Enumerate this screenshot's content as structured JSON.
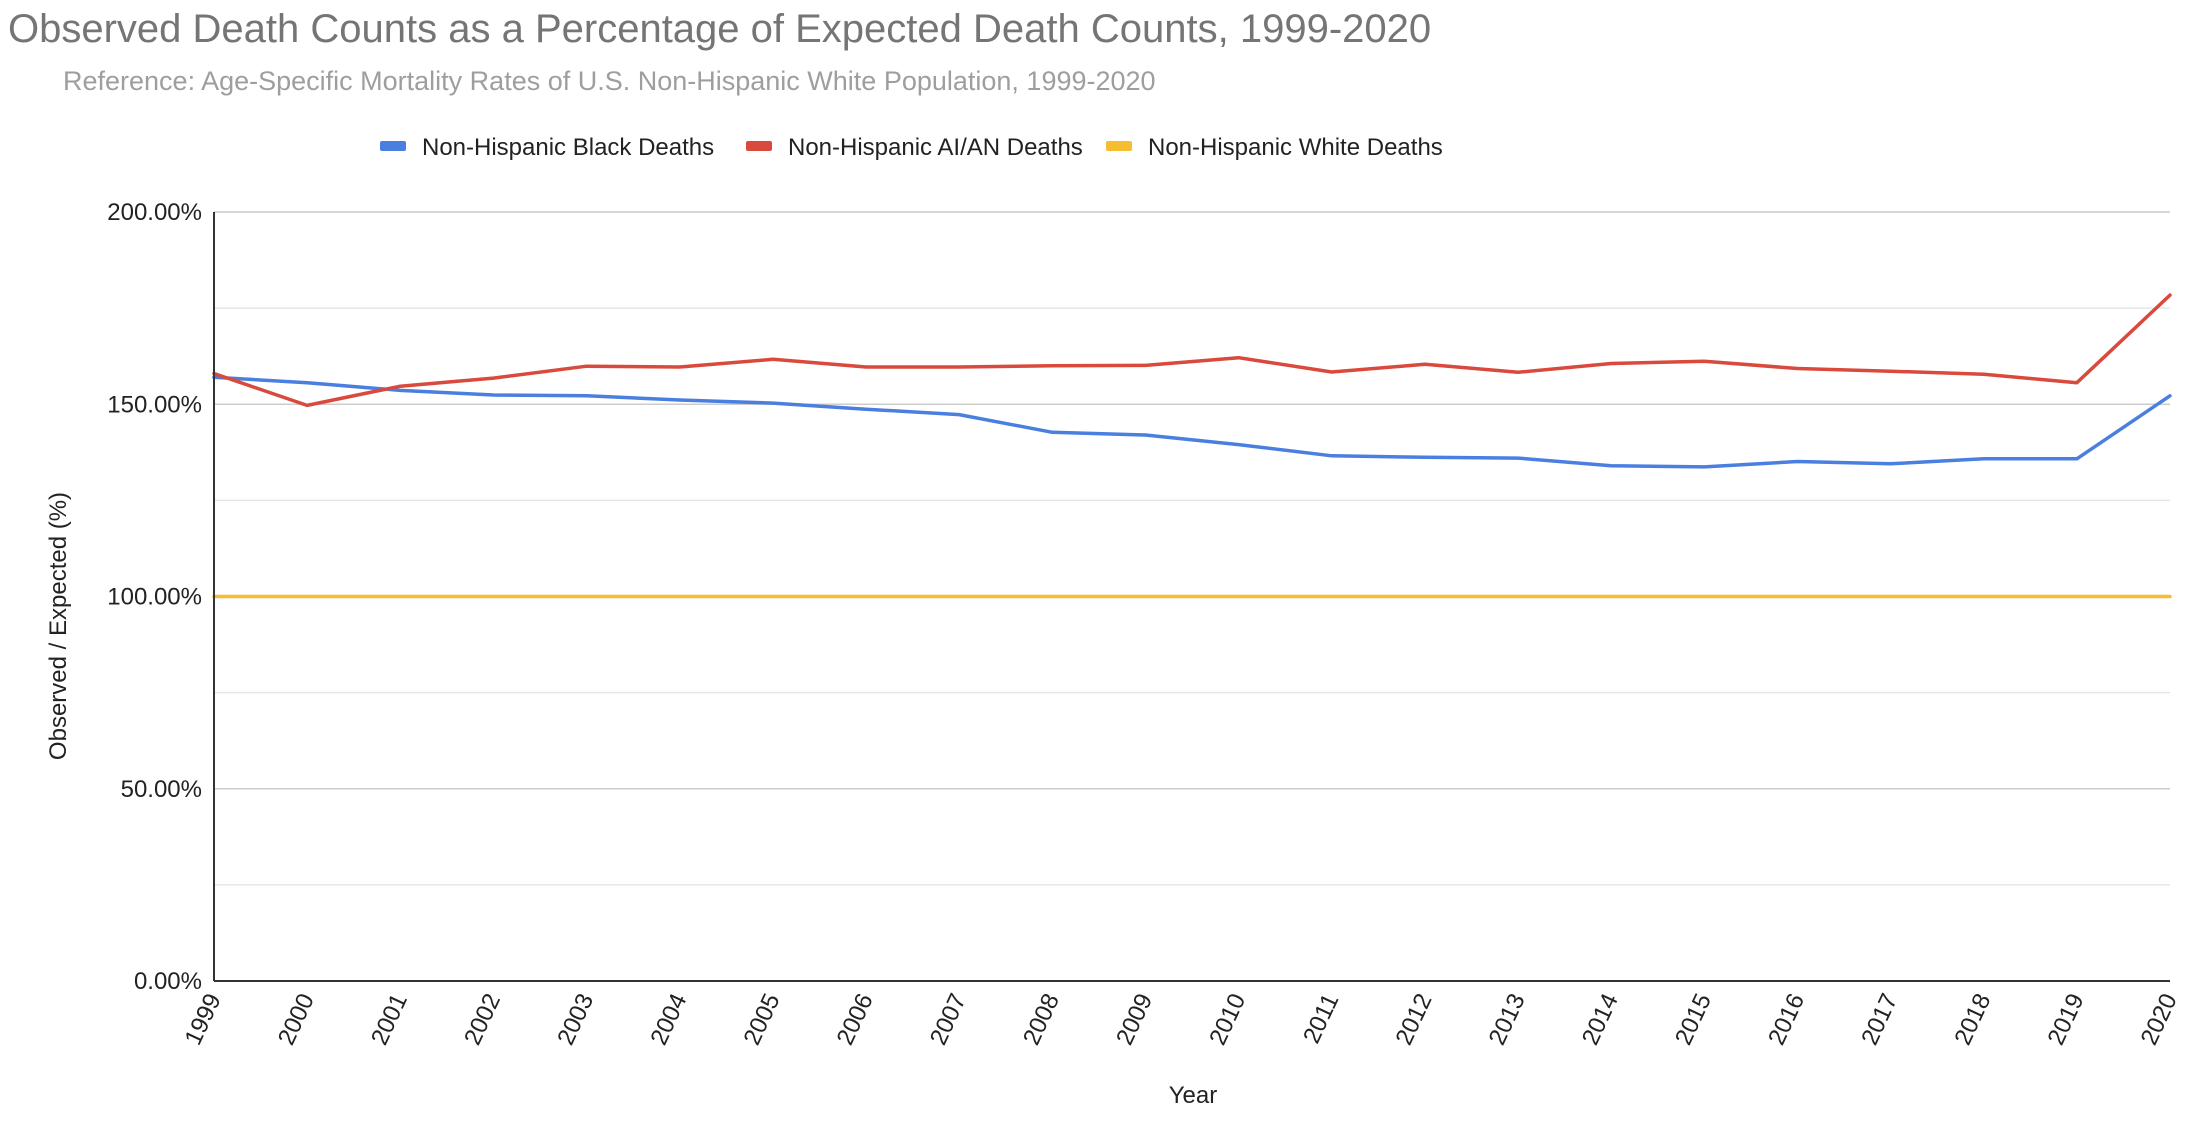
{
  "chart_data": {
    "type": "line",
    "title": "Observed Death Counts as a Percentage of Expected Death Counts, 1999-2020",
    "subtitle": "Reference: Age-Specific Mortality Rates of U.S. Non-Hispanic White Population, 1999-2020",
    "xlabel": "Year",
    "ylabel": "Observed / Expected (%)",
    "ylim": [
      0,
      200
    ],
    "y_ticks": [
      0,
      50,
      100,
      150,
      200
    ],
    "y_tick_labels": [
      "0.00%",
      "50.00%",
      "100.00%",
      "150.00%",
      "200.00%"
    ],
    "grid": true,
    "legend_position": "top",
    "categories": [
      "1999",
      "2000",
      "2001",
      "2002",
      "2003",
      "2004",
      "2005",
      "2006",
      "2007",
      "2008",
      "2009",
      "2010",
      "2011",
      "2012",
      "2013",
      "2014",
      "2015",
      "2016",
      "2017",
      "2018",
      "2019",
      "2020"
    ],
    "series": [
      {
        "name": "Non-Hispanic Black Deaths",
        "color": "#4a7fe0",
        "values": [
          157.0,
          155.6,
          153.6,
          152.4,
          152.2,
          151.1,
          150.3,
          148.7,
          147.3,
          142.7,
          142.0,
          139.5,
          136.6,
          136.2,
          136.0,
          134.0,
          133.7,
          135.1,
          134.5,
          135.8,
          135.8,
          152.2
        ]
      },
      {
        "name": "Non-Hispanic AI/AN Deaths",
        "color": "#d9493c",
        "values": [
          158.0,
          149.7,
          154.7,
          156.8,
          159.9,
          159.7,
          161.7,
          159.7,
          159.7,
          160.0,
          160.1,
          162.1,
          158.4,
          160.4,
          158.3,
          160.6,
          161.2,
          159.3,
          158.6,
          157.8,
          155.6,
          178.4
        ]
      },
      {
        "name": "Non-Hispanic White Deaths",
        "color": "#f4be30",
        "values": [
          100,
          100,
          100,
          100,
          100,
          100,
          100,
          100,
          100,
          100,
          100,
          100,
          100,
          100,
          100,
          100,
          100,
          100,
          100,
          100,
          100,
          100
        ]
      }
    ]
  }
}
